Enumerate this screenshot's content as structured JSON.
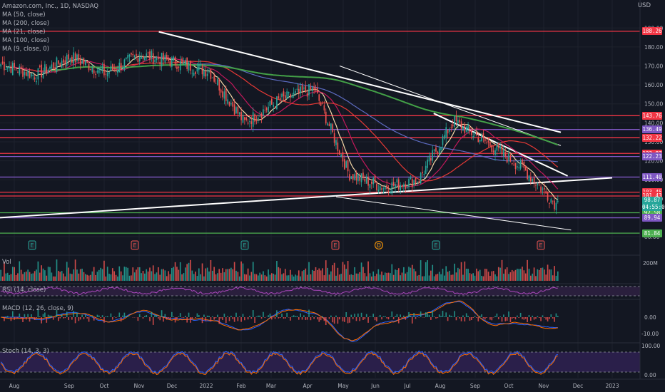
{
  "header": {
    "symbol_line": "Amazon.com, Inc., 1D, NASDAQ",
    "indicators": [
      "MA (50, close)",
      "MA (200, close)",
      "MA (21, close)",
      "MA (100, close)",
      "MA (9, close, 0)"
    ],
    "currency": "USD"
  },
  "panes": {
    "volume_label": "Vol",
    "rsi_label": "RSI (14, close)",
    "macd_label": "MACD (12, 26, close, 9)",
    "stoch_label": "Stoch (14, 3, 3)"
  },
  "colors": {
    "background": "#131722",
    "up": "#26a69a",
    "down": "#ef5350",
    "red_level": "#f23645",
    "purple_level": "#7e57c2",
    "green_level": "#4caf50",
    "trendline": "#ffffff",
    "ma9": "#f7d9a8",
    "ma21": "#c2185b",
    "ma50": "#e53935",
    "ma100": "#5c6bc0",
    "ma200": "#43a047"
  },
  "chart_data": {
    "type": "candlestick",
    "title": "Amazon.com, Inc., 1D, NASDAQ",
    "y_unit": "USD",
    "y_range": [
      77,
      201
    ],
    "x_ticks": [
      "Aug",
      "Sep",
      "Oct",
      "Nov",
      "Dec",
      "2022",
      "Feb",
      "Mar",
      "Apr",
      "May",
      "Jun",
      "Jul",
      "Aug",
      "Sep",
      "Oct",
      "Nov",
      "Dec",
      "2023"
    ],
    "y_ticks": [
      80,
      90,
      100,
      110,
      120,
      130,
      140,
      150,
      160,
      170,
      180,
      190
    ],
    "price_path": {
      "x": [
        "Jul",
        "Aug",
        "Sep",
        "Oct",
        "Nov",
        "Dec",
        "2022",
        "Feb",
        "Mar",
        "Apr",
        "May",
        "Jun",
        "Jul",
        "Aug",
        "Sep",
        "Oct",
        "Nov"
      ],
      "close": [
        171,
        165,
        175,
        166,
        176,
        172,
        167,
        140,
        152,
        158,
        113,
        106,
        110,
        141,
        129,
        116,
        96
      ],
      "last": 98.87
    },
    "horizontal_levels": [
      {
        "value": 188.26,
        "label": "188.26",
        "color": "red"
      },
      {
        "value": 143.76,
        "label": "143.76",
        "color": "red"
      },
      {
        "value": 136.49,
        "label": "136.49",
        "color": "purple"
      },
      {
        "value": 132.22,
        "label": "132.22",
        "color": "red"
      },
      {
        "value": 123.87,
        "label": "123.87",
        "color": "red"
      },
      {
        "value": 122.23,
        "label": "122.23",
        "color": "purple"
      },
      {
        "value": 111.4,
        "label": "111.40",
        "color": "purple"
      },
      {
        "value": 103.45,
        "label": "103.45",
        "color": "red"
      },
      {
        "value": 101.43,
        "label": "101.43",
        "color": "red"
      },
      {
        "value": 92.58,
        "label": "92.58",
        "color": "green"
      },
      {
        "value": 89.94,
        "label": "89.94",
        "color": "purple"
      },
      {
        "value": 81.84,
        "label": "81.84",
        "color": "green"
      }
    ],
    "last_price": {
      "value": 98.87,
      "countdown": "04:55:05"
    },
    "earnings_markers": [
      "Jul",
      "Oct",
      "Feb",
      "Apr",
      "Jul",
      "Oct"
    ],
    "dividend_marker": "Jun",
    "volume_axis_label": "200M",
    "macd_ticks": [
      "0.00",
      "-10.00"
    ],
    "stoch_ticks": [
      "100.00",
      "0.00"
    ]
  }
}
